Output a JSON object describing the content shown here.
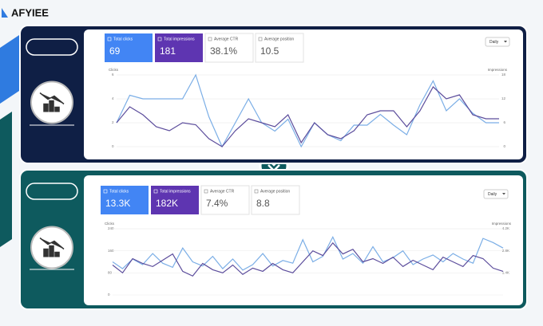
{
  "brand": "AFYIEE",
  "panels": [
    {
      "tiles": [
        {
          "label": "Total clicks",
          "value": "69",
          "selected": true
        },
        {
          "label": "Total impressions",
          "value": "181",
          "selected": true
        },
        {
          "label": "Average CTR",
          "value": "38.1%",
          "selected": false
        },
        {
          "label": "Average position",
          "value": "10.5",
          "selected": false
        }
      ],
      "dropdown": "Daily",
      "chart": {
        "type": "line",
        "y_label": "Clicks",
        "y2_label": "Impressions",
        "ylim": [
          0,
          6
        ],
        "yticks": [
          0,
          2,
          4,
          6
        ],
        "y2lim": [
          0,
          18
        ],
        "y2ticks": [
          0,
          6,
          12,
          18
        ],
        "series": [
          {
            "color": "#7baee6",
            "axis": "y",
            "values": [
              2,
              4.3,
              4,
              4,
              4,
              4,
              6,
              2.5,
              0,
              2,
              4,
              2,
              1.3,
              2.3,
              0,
              2,
              1,
              0.5,
              1.8,
              1.8,
              2.7,
              1.8,
              1,
              3.5,
              5.5,
              3,
              4,
              2.8,
              2,
              2
            ]
          },
          {
            "color": "#5c4d9c",
            "axis": "y2",
            "values": [
              6,
              10,
              8,
              5,
              4,
              6,
              5.5,
              2,
              0,
              4,
              7,
              6,
              5,
              8,
              1,
              6,
              3,
              2,
              4,
              8,
              9,
              9,
              5,
              9,
              15,
              12,
              13,
              8,
              7,
              7
            ]
          }
        ]
      }
    },
    {
      "tiles": [
        {
          "label": "Total clicks",
          "value": "13.3K",
          "selected": true
        },
        {
          "label": "Total impressions",
          "value": "182K",
          "selected": true
        },
        {
          "label": "Average CTR",
          "value": "7.4%",
          "selected": false
        },
        {
          "label": "Average position",
          "value": "8.8",
          "selected": false
        }
      ],
      "dropdown": "Daily",
      "chart": {
        "type": "line",
        "y_label": "Clicks",
        "y2_label": "Impressions",
        "ylim": [
          0,
          240
        ],
        "yticks": [
          0,
          80,
          160,
          240
        ],
        "y2lim": [
          0,
          4.2
        ],
        "y2ticks": [
          {
            "value": 1.4,
            "label": "1.4K"
          },
          {
            "value": 2.8,
            "label": "2.8K"
          },
          {
            "value": 4.2,
            "label": "4.2K"
          }
        ],
        "series": [
          {
            "color": "#7baee6",
            "axis": "y",
            "values": [
              120,
              95,
              130,
              110,
              150,
              115,
              100,
              170,
              120,
              105,
              140,
              95,
              130,
              90,
              110,
              150,
              105,
              125,
              115,
              200,
              120,
              140,
              210,
              130,
              150,
              115,
              175,
              120,
              135,
              160,
              110,
              130,
              145,
              120,
              150,
              130,
              115,
              205,
              190,
              170
            ]
          },
          {
            "color": "#5c4d9c",
            "axis": "y2",
            "values": [
              1.9,
              1.4,
              2.3,
              2.0,
              1.8,
              2.2,
              2.6,
              1.5,
              1.2,
              2.0,
              1.6,
              1.4,
              1.9,
              1.3,
              1.7,
              1.5,
              2.0,
              1.6,
              1.4,
              2.1,
              2.8,
              2.5,
              3.3,
              2.6,
              2.9,
              2.1,
              2.3,
              2.0,
              2.4,
              1.8,
              2.2,
              1.9,
              1.6,
              2.4,
              2.1,
              1.8,
              2.5,
              2.3,
              1.7,
              1.5
            ]
          }
        ]
      }
    }
  ]
}
